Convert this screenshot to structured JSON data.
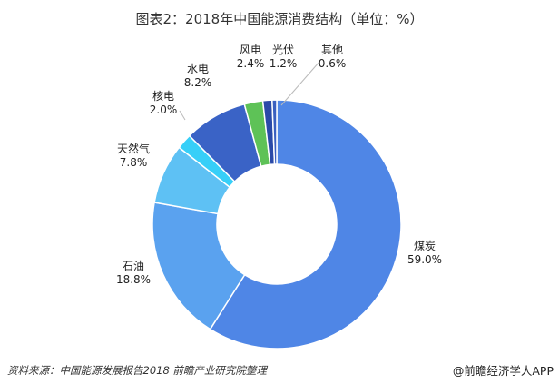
{
  "chart_data": {
    "type": "pie",
    "title": "图表2：2018年中国能源消费结构（单位：%）",
    "categories": [
      "煤炭",
      "石油",
      "天然气",
      "核电",
      "水电",
      "风电",
      "光伏",
      "其他"
    ],
    "values": [
      59.0,
      18.8,
      7.8,
      2.0,
      8.2,
      2.4,
      1.2,
      0.6
    ],
    "value_labels": [
      "59.0%",
      "18.8%",
      "7.8%",
      "2.0%",
      "8.2%",
      "2.4%",
      "1.2%",
      "0.6%"
    ],
    "colors": [
      "#4f86e6",
      "#5aa2ef",
      "#5ec1f4",
      "#37cff8",
      "#3a63c6",
      "#5ec257",
      "#2a4aa8",
      "#3a60c0"
    ],
    "donut": true
  },
  "footer": {
    "source": "资料来源：中国能源发展报告2018  前瞻产业研究院整理",
    "brand": "@前瞻经济学人APP"
  }
}
